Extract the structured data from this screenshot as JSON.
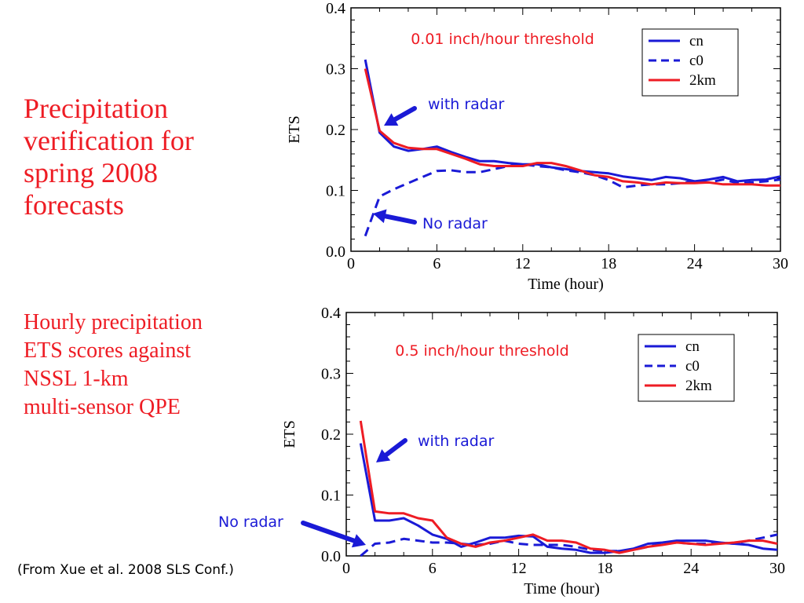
{
  "slide": {
    "title": "Precipitation\nverification for\nspring 2008\nforecasts",
    "subtitle": "Hourly precipitation\nETS scores against\nNSSL 1-km\nmulti-sensor QPE",
    "citation": "(From Xue et al. 2008 SLS Conf.)"
  },
  "colors": {
    "red": "#ee1c24",
    "blue": "#1a1ad6",
    "arrow": "#1a1ad6"
  },
  "chart_data": [
    {
      "type": "line",
      "title": "0.01 inch/hour threshold",
      "xlabel": "Time (hour)",
      "ylabel": "ETS",
      "xlim": [
        0,
        30
      ],
      "ylim": [
        0,
        0.4
      ],
      "xticks": [
        "0",
        "6",
        "12",
        "18",
        "24",
        "30"
      ],
      "yticks": [
        "0.0",
        "0.1",
        "0.2",
        "0.3",
        "0.4"
      ],
      "grid": false,
      "legend_position": "top-right",
      "series": [
        {
          "name": "cn",
          "color": "#1a1ad6",
          "dash": "solid",
          "x": [
            1,
            2,
            3,
            4,
            5,
            6,
            7,
            8,
            9,
            10,
            11,
            12,
            13,
            14,
            15,
            16,
            17,
            18,
            19,
            20,
            21,
            22,
            23,
            24,
            25,
            26,
            27,
            28,
            29,
            30
          ],
          "values": [
            0.315,
            0.195,
            0.172,
            0.165,
            0.168,
            0.172,
            0.163,
            0.155,
            0.148,
            0.148,
            0.145,
            0.143,
            0.143,
            0.138,
            0.135,
            0.132,
            0.13,
            0.128,
            0.123,
            0.12,
            0.117,
            0.122,
            0.12,
            0.115,
            0.118,
            0.122,
            0.115,
            0.117,
            0.118,
            0.123
          ]
        },
        {
          "name": "c0",
          "color": "#1a1ad6",
          "dash": "dashed",
          "x": [
            1,
            2,
            3,
            4,
            5,
            6,
            7,
            8,
            9,
            10,
            11,
            12,
            13,
            14,
            15,
            16,
            17,
            18,
            19,
            20,
            21,
            22,
            23,
            24,
            25,
            26,
            27,
            28,
            29,
            30
          ],
          "values": [
            0.025,
            0.09,
            0.102,
            0.112,
            0.122,
            0.132,
            0.133,
            0.13,
            0.13,
            0.135,
            0.14,
            0.143,
            0.14,
            0.138,
            0.133,
            0.13,
            0.125,
            0.117,
            0.105,
            0.108,
            0.11,
            0.11,
            0.112,
            0.115,
            0.113,
            0.118,
            0.112,
            0.113,
            0.115,
            0.118
          ]
        },
        {
          "name": "2km",
          "color": "#ee1c24",
          "dash": "solid",
          "x": [
            1,
            2,
            3,
            4,
            5,
            6,
            7,
            8,
            9,
            10,
            11,
            12,
            13,
            14,
            15,
            16,
            17,
            18,
            19,
            20,
            21,
            22,
            23,
            24,
            25,
            26,
            27,
            28,
            29,
            30
          ],
          "values": [
            0.3,
            0.198,
            0.178,
            0.17,
            0.168,
            0.168,
            0.16,
            0.152,
            0.143,
            0.14,
            0.14,
            0.14,
            0.145,
            0.145,
            0.14,
            0.133,
            0.125,
            0.122,
            0.115,
            0.113,
            0.11,
            0.113,
            0.112,
            0.112,
            0.113,
            0.11,
            0.11,
            0.11,
            0.108,
            0.108
          ]
        }
      ],
      "annotations": [
        {
          "text": "with radar",
          "color": "#1a1ad6"
        },
        {
          "text": "No radar",
          "color": "#1a1ad6"
        }
      ]
    },
    {
      "type": "line",
      "title": "0.5 inch/hour threshold",
      "xlabel": "Time (hour)",
      "ylabel": "ETS",
      "xlim": [
        0,
        30
      ],
      "ylim": [
        0,
        0.4
      ],
      "xticks": [
        "0",
        "6",
        "12",
        "18",
        "24",
        "30"
      ],
      "yticks": [
        "0.0",
        "0.1",
        "0.2",
        "0.3",
        "0.4"
      ],
      "grid": false,
      "legend_position": "top-right",
      "series": [
        {
          "name": "cn",
          "color": "#1a1ad6",
          "dash": "solid",
          "x": [
            1,
            2,
            3,
            4,
            5,
            6,
            7,
            8,
            9,
            10,
            11,
            12,
            13,
            14,
            15,
            16,
            17,
            18,
            19,
            20,
            21,
            22,
            23,
            24,
            25,
            26,
            27,
            28,
            29,
            30
          ],
          "values": [
            0.185,
            0.058,
            0.058,
            0.062,
            0.05,
            0.035,
            0.028,
            0.015,
            0.022,
            0.03,
            0.03,
            0.033,
            0.032,
            0.015,
            0.012,
            0.01,
            0.005,
            0.005,
            0.008,
            0.012,
            0.02,
            0.022,
            0.025,
            0.025,
            0.025,
            0.022,
            0.02,
            0.018,
            0.012,
            0.01
          ]
        },
        {
          "name": "c0",
          "color": "#1a1ad6",
          "dash": "dashed",
          "x": [
            1,
            2,
            3,
            4,
            5,
            6,
            7,
            8,
            9,
            10,
            11,
            12,
            13,
            14,
            15,
            16,
            17,
            18,
            19,
            20,
            21,
            22,
            23,
            24,
            25,
            26,
            27,
            28,
            29,
            30
          ],
          "values": [
            0.0,
            0.02,
            0.022,
            0.028,
            0.025,
            0.022,
            0.022,
            0.02,
            0.018,
            0.02,
            0.025,
            0.02,
            0.018,
            0.018,
            0.018,
            0.015,
            0.01,
            0.008,
            0.008,
            0.01,
            0.015,
            0.02,
            0.022,
            0.02,
            0.02,
            0.022,
            0.02,
            0.025,
            0.03,
            0.035
          ]
        },
        {
          "name": "2km",
          "color": "#ee1c24",
          "dash": "solid",
          "x": [
            1,
            2,
            3,
            4,
            5,
            6,
            7,
            8,
            9,
            10,
            11,
            12,
            13,
            14,
            15,
            16,
            17,
            18,
            19,
            20,
            21,
            22,
            23,
            24,
            25,
            26,
            27,
            28,
            29,
            30
          ],
          "values": [
            0.222,
            0.073,
            0.07,
            0.07,
            0.062,
            0.058,
            0.03,
            0.02,
            0.015,
            0.022,
            0.025,
            0.03,
            0.035,
            0.025,
            0.025,
            0.022,
            0.012,
            0.01,
            0.005,
            0.01,
            0.015,
            0.018,
            0.022,
            0.02,
            0.018,
            0.02,
            0.022,
            0.025,
            0.025,
            0.02
          ]
        }
      ],
      "annotations": [
        {
          "text": "with radar",
          "color": "#1a1ad6"
        },
        {
          "text": "No radar",
          "color": "#1a1ad6"
        }
      ]
    }
  ]
}
